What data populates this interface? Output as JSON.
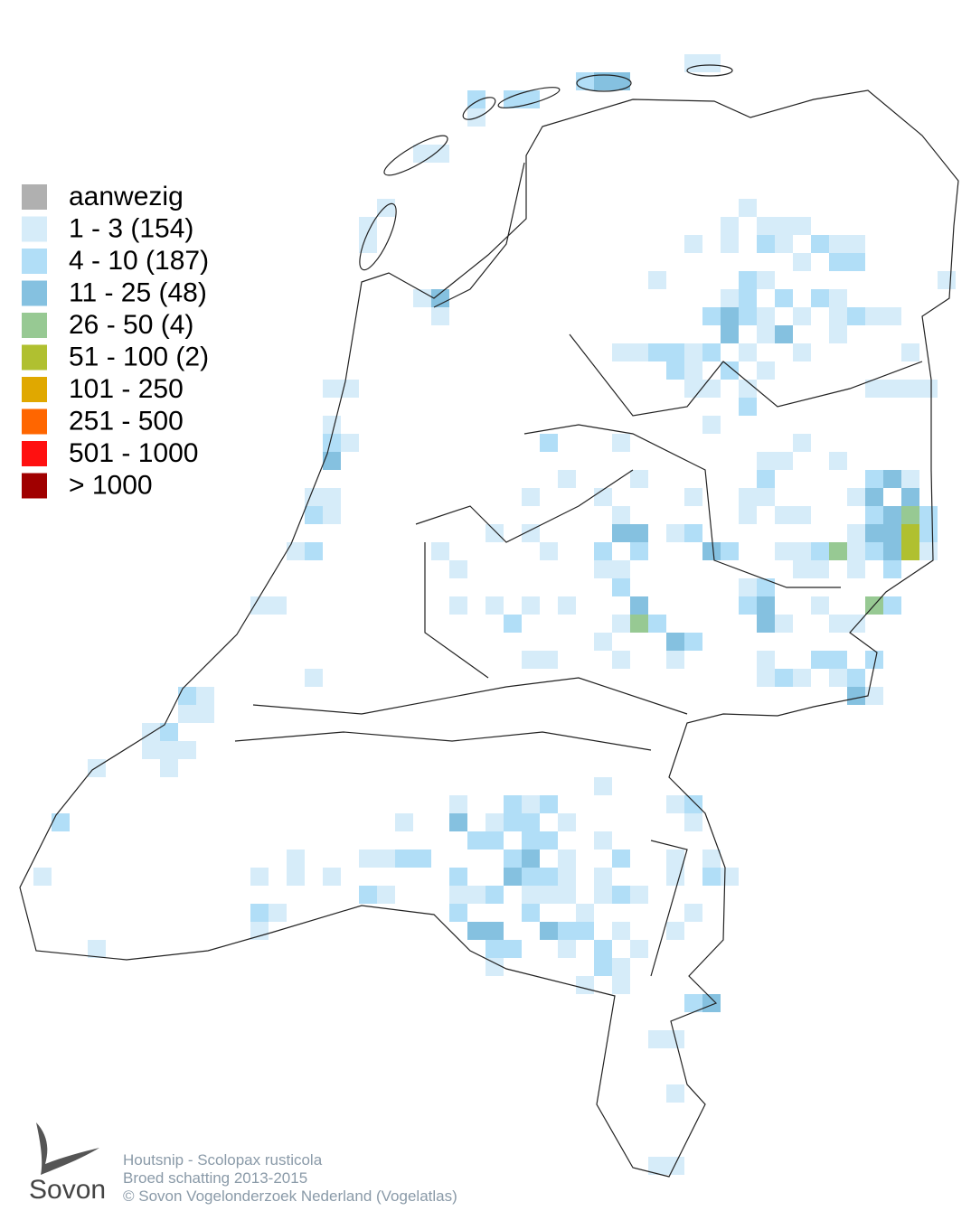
{
  "legend": {
    "items": [
      {
        "label": "aanwezig",
        "color": "#b0b0b0"
      },
      {
        "label": "1 - 3 (154)",
        "color": "#d6ecf9"
      },
      {
        "label": "4 - 10 (187)",
        "color": "#b1def7"
      },
      {
        "label": "11 - 25 (48)",
        "color": "#85c1e0"
      },
      {
        "label": "26 - 50 (4)",
        "color": "#97c993"
      },
      {
        "label": "51 - 100 (2)",
        "color": "#b0c030"
      },
      {
        "label": "101 - 250",
        "color": "#e0a800"
      },
      {
        "label": "251 - 500",
        "color": "#ff6600"
      },
      {
        "label": "501 - 1000",
        "color": "#ff1010"
      },
      {
        "label": "> 1000",
        "color": "#a00000"
      }
    ]
  },
  "footer": {
    "species": "Houtsnip - Scolopax rusticola",
    "period": "Broed schatting 2013-2015",
    "credit": "© Sovon Vogelonderzoek Nederland (Vogelatlas)"
  },
  "logo": {
    "name": "Sovon"
  }
}
